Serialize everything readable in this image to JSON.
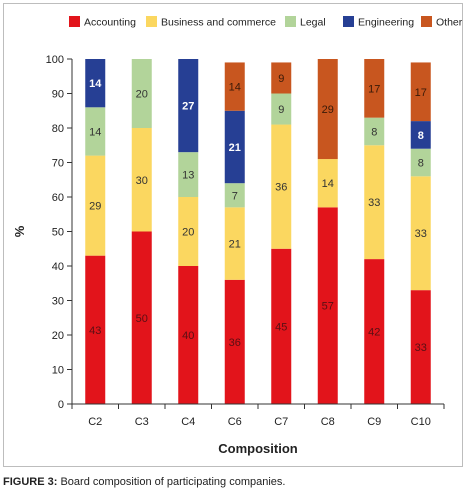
{
  "caption": {
    "prefix": "FIGURE 3:",
    "text": " Board composition of participating companies."
  },
  "chart_data": {
    "type": "bar",
    "stacked": true,
    "categories": [
      "C2",
      "C3",
      "C4",
      "C6",
      "C7",
      "C8",
      "C9",
      "C10"
    ],
    "series": [
      {
        "name": "Accounting",
        "color": "#e2141b",
        "label_color": "#5a0f14",
        "values": [
          43,
          50,
          40,
          36,
          45,
          57,
          42,
          33
        ]
      },
      {
        "name": "Business and commerce",
        "color": "#fbd760",
        "label_color": "#333333",
        "values": [
          29,
          30,
          20,
          21,
          36,
          14,
          33,
          33
        ]
      },
      {
        "name": "Legal",
        "color": "#b2d49a",
        "label_color": "#333333",
        "values": [
          14,
          20,
          13,
          7,
          9,
          0,
          8,
          8
        ]
      },
      {
        "name": "Engineering",
        "color": "#263f94",
        "label_color": "#ffffff",
        "values": [
          14,
          0,
          27,
          21,
          0,
          0,
          0,
          8
        ]
      },
      {
        "name": "Other",
        "color": "#c8561f",
        "label_color": "#3a1a08",
        "values": [
          0,
          0,
          0,
          14,
          9,
          29,
          17,
          17
        ]
      }
    ],
    "xlabel": "Composition",
    "ylabel": "%",
    "ylim": [
      0,
      100
    ],
    "yticks": [
      0,
      10,
      20,
      30,
      40,
      50,
      60,
      70,
      80,
      90,
      100
    ],
    "legend": "top",
    "grid": false
  }
}
